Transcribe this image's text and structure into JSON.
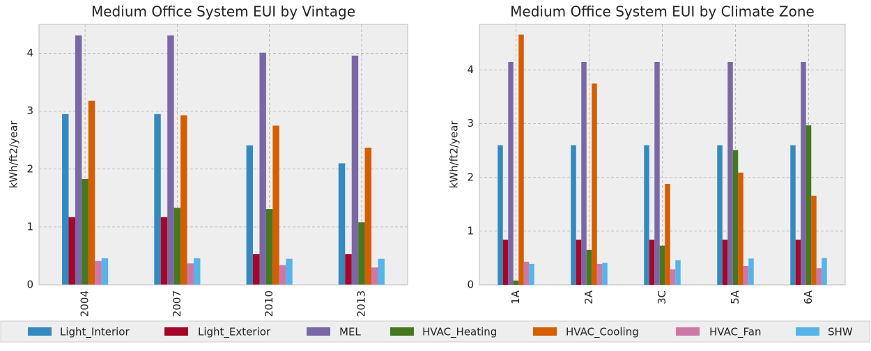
{
  "chart_data": [
    {
      "type": "bar",
      "title": "Medium Office System EUI by Vintage",
      "ylabel": "kWh/ft2/year",
      "categories": [
        "2004",
        "2007",
        "2010",
        "2013"
      ],
      "ylim": [
        0,
        4.5
      ],
      "yticks": [
        0,
        1,
        2,
        3,
        4
      ],
      "grid": true,
      "series": [
        {
          "name": "Light_Interior",
          "color": "#348abd",
          "values": [
            2.95,
            2.95,
            2.41,
            2.1
          ]
        },
        {
          "name": "Light_Exterior",
          "color": "#a60628",
          "values": [
            1.17,
            1.17,
            0.53,
            0.53
          ]
        },
        {
          "name": "MEL",
          "color": "#7a68a6",
          "values": [
            4.31,
            4.31,
            4.01,
            3.96
          ]
        },
        {
          "name": "HVAC_Heating",
          "color": "#467821",
          "values": [
            1.83,
            1.33,
            1.31,
            1.08
          ]
        },
        {
          "name": "HVAC_Cooling",
          "color": "#d55e00",
          "values": [
            3.18,
            2.93,
            2.75,
            2.37
          ]
        },
        {
          "name": "HVAC_Fan",
          "color": "#cc79a7",
          "values": [
            0.41,
            0.37,
            0.34,
            0.3
          ]
        },
        {
          "name": "SHW",
          "color": "#56b4e9",
          "values": [
            0.46,
            0.46,
            0.45,
            0.45
          ]
        }
      ]
    },
    {
      "type": "bar",
      "title": "Medium Office System EUI by Climate Zone",
      "ylabel": "kWh/ft2/year",
      "categories": [
        "1A",
        "2A",
        "3C",
        "5A",
        "6A"
      ],
      "ylim": [
        0,
        4.85
      ],
      "yticks": [
        0,
        1,
        2,
        3,
        4
      ],
      "grid": true,
      "series": [
        {
          "name": "Light_Interior",
          "color": "#348abd",
          "values": [
            2.6,
            2.6,
            2.6,
            2.6,
            2.6
          ]
        },
        {
          "name": "Light_Exterior",
          "color": "#a60628",
          "values": [
            0.84,
            0.84,
            0.84,
            0.84,
            0.84
          ]
        },
        {
          "name": "MEL",
          "color": "#7a68a6",
          "values": [
            4.15,
            4.15,
            4.15,
            4.15,
            4.15
          ]
        },
        {
          "name": "HVAC_Heating",
          "color": "#467821",
          "values": [
            0.08,
            0.65,
            0.73,
            2.51,
            2.97
          ]
        },
        {
          "name": "HVAC_Cooling",
          "color": "#d55e00",
          "values": [
            4.66,
            3.75,
            1.88,
            2.09,
            1.66
          ]
        },
        {
          "name": "HVAC_Fan",
          "color": "#cc79a7",
          "values": [
            0.43,
            0.39,
            0.29,
            0.35,
            0.31
          ]
        },
        {
          "name": "SHW",
          "color": "#56b4e9",
          "values": [
            0.39,
            0.41,
            0.46,
            0.49,
            0.5
          ]
        }
      ]
    }
  ]
}
